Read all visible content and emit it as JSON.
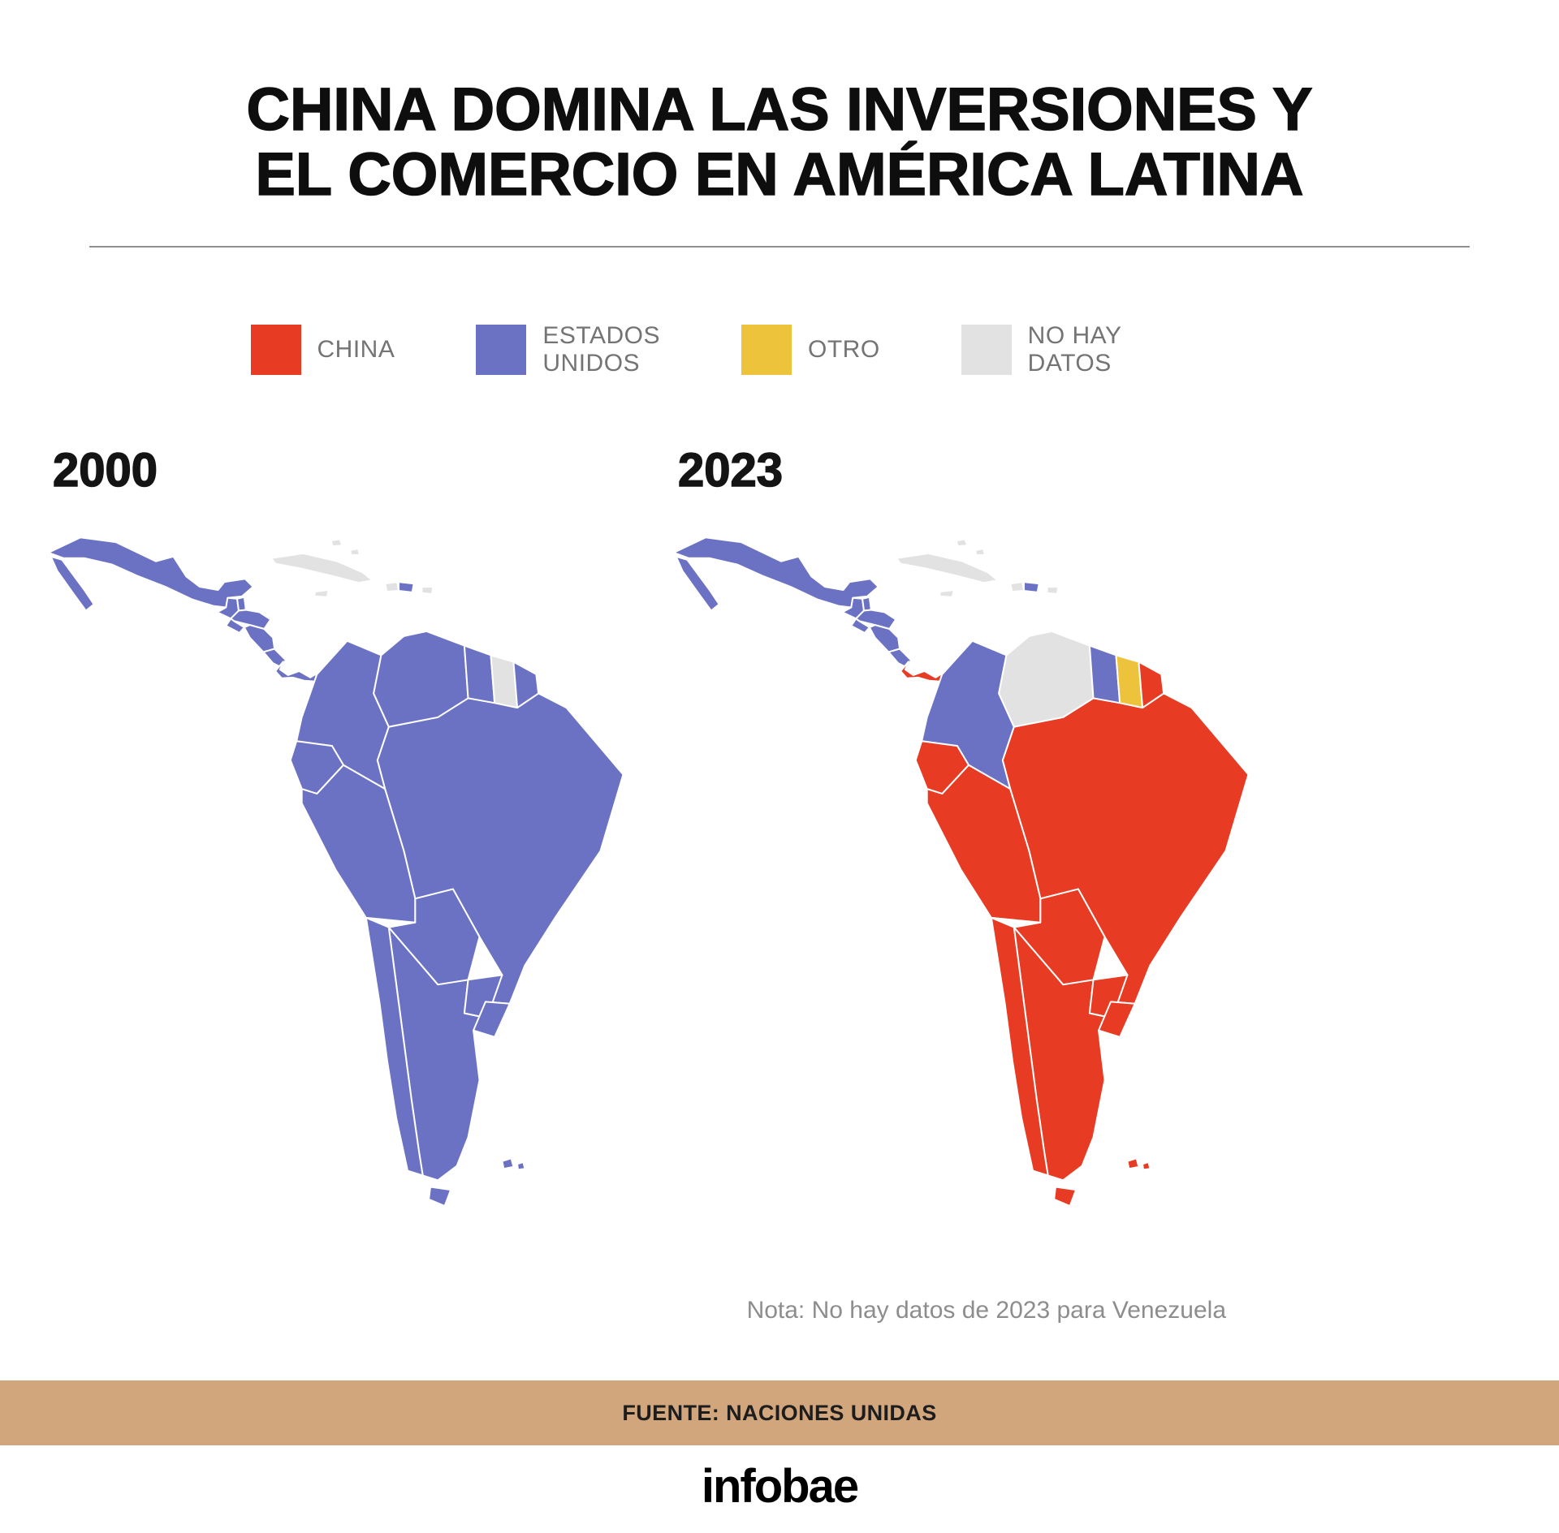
{
  "title": {
    "line1": "CHINA DOMINA LAS INVERSIONES Y",
    "line2": "EL COMERCIO EN AMÉRICA LATINA"
  },
  "legend": [
    {
      "id": "china",
      "label": "CHINA",
      "color": "#e73b23"
    },
    {
      "id": "us",
      "label": "ESTADOS\nUNIDOS",
      "color": "#6b72c4"
    },
    {
      "id": "other",
      "label": "OTRO",
      "color": "#eec33c"
    },
    {
      "id": "nodata",
      "label": "NO HAY\nDATOS",
      "color": "#e2e2e2"
    }
  ],
  "note": "Nota: No hay datos de 2023 para Venezuela",
  "footer": {
    "source": "FUENTE: NACIONES UNIDAS",
    "source_bar_color": "#d1a67c",
    "brand": "infobae"
  },
  "chart_data": {
    "type": "choropleth",
    "maps": [
      {
        "year": "2000",
        "fills": {
          "mexico": "us",
          "guatemala": "us",
          "belize": "us",
          "honduras": "us",
          "el_salvador": "us",
          "nicaragua": "us",
          "costa_rica": "us",
          "panama": "us",
          "cuba": "nodata",
          "bahamas": "nodata",
          "jamaica": "nodata",
          "haiti": "nodata",
          "dominican_republic": "us",
          "puerto_rico": "nodata",
          "colombia": "us",
          "venezuela": "us",
          "guyana": "us",
          "suriname": "nodata",
          "french_guiana": "us",
          "ecuador": "us",
          "peru": "us",
          "brazil": "us",
          "bolivia": "us",
          "paraguay": "us",
          "uruguay": "us",
          "chile": "us",
          "argentina": "us",
          "tierra_del_fuego": "us",
          "falklands": "us"
        }
      },
      {
        "year": "2023",
        "fills": {
          "mexico": "us",
          "guatemala": "us",
          "belize": "us",
          "honduras": "us",
          "el_salvador": "us",
          "nicaragua": "us",
          "costa_rica": "us",
          "panama": "china",
          "cuba": "nodata",
          "bahamas": "nodata",
          "jamaica": "nodata",
          "haiti": "nodata",
          "dominican_republic": "us",
          "puerto_rico": "nodata",
          "colombia": "us",
          "venezuela": "nodata",
          "guyana": "us",
          "suriname": "other",
          "french_guiana": "china",
          "ecuador": "china",
          "peru": "china",
          "brazil": "china",
          "bolivia": "china",
          "paraguay": "china",
          "uruguay": "china",
          "chile": "china",
          "argentina": "china",
          "tierra_del_fuego": "china",
          "falklands": "china"
        }
      }
    ]
  }
}
